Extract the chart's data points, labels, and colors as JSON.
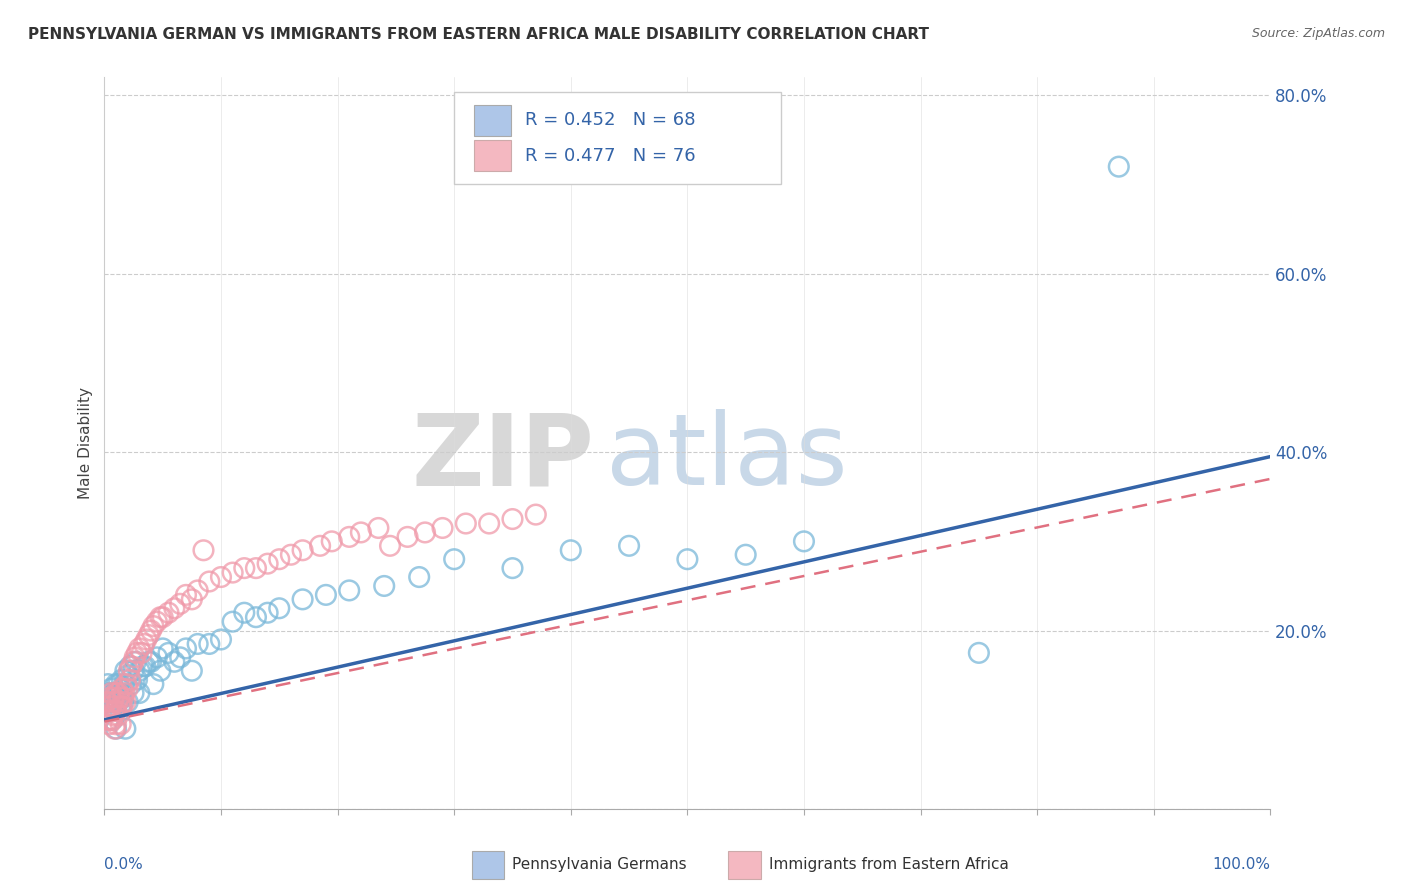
{
  "title": "PENNSYLVANIA GERMAN VS IMMIGRANTS FROM EASTERN AFRICA MALE DISABILITY CORRELATION CHART",
  "source": "Source: ZipAtlas.com",
  "ylabel": "Male Disability",
  "legend_1_label": "R = 0.452   N = 68",
  "legend_2_label": "R = 0.477   N = 76",
  "legend_1_color": "#aec6e8",
  "legend_2_color": "#f4b8c1",
  "series1_color": "#7ab8d9",
  "series2_color": "#f09aaa",
  "trend1_color": "#3464a8",
  "trend2_color": "#e07080",
  "text_blue": "#3464a8",
  "ytick_vals": [
    0.0,
    0.2,
    0.4,
    0.6,
    0.8
  ],
  "ytick_labels": [
    "",
    "20.0%",
    "40.0%",
    "60.0%",
    "80.0%"
  ],
  "series1_x": [
    0.003,
    0.004,
    0.005,
    0.005,
    0.006,
    0.007,
    0.007,
    0.008,
    0.008,
    0.009,
    0.01,
    0.01,
    0.01,
    0.012,
    0.012,
    0.013,
    0.014,
    0.015,
    0.015,
    0.016,
    0.017,
    0.018,
    0.018,
    0.02,
    0.02,
    0.022,
    0.023,
    0.025,
    0.025,
    0.027,
    0.028,
    0.03,
    0.03,
    0.033,
    0.035,
    0.038,
    0.04,
    0.042,
    0.045,
    0.048,
    0.05,
    0.055,
    0.06,
    0.065,
    0.07,
    0.075,
    0.08,
    0.09,
    0.1,
    0.11,
    0.12,
    0.13,
    0.14,
    0.15,
    0.17,
    0.19,
    0.21,
    0.24,
    0.27,
    0.3,
    0.35,
    0.4,
    0.45,
    0.5,
    0.55,
    0.6,
    0.75,
    0.87
  ],
  "series1_y": [
    0.14,
    0.13,
    0.12,
    0.11,
    0.135,
    0.125,
    0.1,
    0.13,
    0.115,
    0.12,
    0.14,
    0.13,
    0.09,
    0.14,
    0.12,
    0.13,
    0.11,
    0.145,
    0.125,
    0.12,
    0.14,
    0.155,
    0.09,
    0.15,
    0.12,
    0.16,
    0.14,
    0.155,
    0.13,
    0.165,
    0.145,
    0.155,
    0.13,
    0.16,
    0.16,
    0.165,
    0.165,
    0.14,
    0.17,
    0.155,
    0.18,
    0.175,
    0.165,
    0.17,
    0.18,
    0.155,
    0.185,
    0.185,
    0.19,
    0.21,
    0.22,
    0.215,
    0.22,
    0.225,
    0.235,
    0.24,
    0.245,
    0.25,
    0.26,
    0.28,
    0.27,
    0.29,
    0.295,
    0.28,
    0.285,
    0.3,
    0.175,
    0.72
  ],
  "series2_x": [
    0.002,
    0.003,
    0.003,
    0.004,
    0.004,
    0.005,
    0.005,
    0.006,
    0.006,
    0.007,
    0.007,
    0.008,
    0.008,
    0.009,
    0.009,
    0.01,
    0.01,
    0.01,
    0.011,
    0.012,
    0.012,
    0.013,
    0.014,
    0.014,
    0.015,
    0.015,
    0.016,
    0.017,
    0.018,
    0.019,
    0.02,
    0.021,
    0.022,
    0.023,
    0.025,
    0.026,
    0.028,
    0.03,
    0.032,
    0.034,
    0.036,
    0.038,
    0.04,
    0.042,
    0.045,
    0.048,
    0.05,
    0.055,
    0.06,
    0.065,
    0.07,
    0.075,
    0.08,
    0.085,
    0.09,
    0.1,
    0.11,
    0.12,
    0.13,
    0.14,
    0.15,
    0.16,
    0.17,
    0.185,
    0.195,
    0.21,
    0.22,
    0.235,
    0.245,
    0.26,
    0.275,
    0.29,
    0.31,
    0.33,
    0.35,
    0.37
  ],
  "series2_y": [
    0.12,
    0.11,
    0.1,
    0.115,
    0.095,
    0.125,
    0.1,
    0.13,
    0.115,
    0.12,
    0.1,
    0.125,
    0.105,
    0.11,
    0.09,
    0.13,
    0.11,
    0.095,
    0.12,
    0.13,
    0.105,
    0.125,
    0.115,
    0.095,
    0.135,
    0.115,
    0.125,
    0.13,
    0.12,
    0.14,
    0.135,
    0.155,
    0.145,
    0.16,
    0.165,
    0.17,
    0.175,
    0.18,
    0.175,
    0.185,
    0.19,
    0.195,
    0.2,
    0.205,
    0.21,
    0.215,
    0.215,
    0.22,
    0.225,
    0.23,
    0.24,
    0.235,
    0.245,
    0.29,
    0.255,
    0.26,
    0.265,
    0.27,
    0.27,
    0.275,
    0.28,
    0.285,
    0.29,
    0.295,
    0.3,
    0.305,
    0.31,
    0.315,
    0.295,
    0.305,
    0.31,
    0.315,
    0.32,
    0.32,
    0.325,
    0.33
  ],
  "trend1_x0": 0.0,
  "trend1_y0": 0.1,
  "trend1_x1": 1.0,
  "trend1_y1": 0.395,
  "trend2_x0": 0.0,
  "trend2_y0": 0.098,
  "trend2_x1": 1.0,
  "trend2_y1": 0.37,
  "xlim": [
    0.0,
    1.0
  ],
  "ylim": [
    0.0,
    0.82
  ]
}
